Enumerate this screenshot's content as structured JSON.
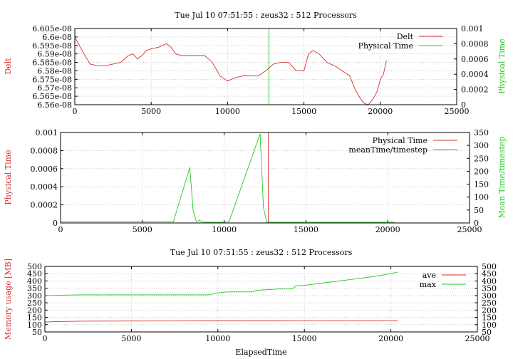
{
  "colors": {
    "red": "#d32f2f",
    "green": "#22c822",
    "grid": "#b0b0b0",
    "axis": "#000000"
  },
  "chart_data": [
    {
      "type": "line",
      "title": "Tue Jul 10 07:51:55 : zeus32 : 512 Processors",
      "xlim": [
        0,
        25000
      ],
      "x_ticks": [
        0,
        5000,
        10000,
        15000,
        20000,
        25000
      ],
      "ylabel": "Delt",
      "ylim": [
        6.56e-08,
        6.605e-08
      ],
      "y_ticks": [
        "6.56e-08",
        "6.565e-08",
        "6.57e-08",
        "6.575e-08",
        "6.58e-08",
        "6.585e-08",
        "6.59e-08",
        "6.595e-08",
        "6.6e-08",
        "6.605e-08"
      ],
      "y2label": "Physical Time",
      "y2lim": [
        0,
        0.001
      ],
      "y2_ticks": [
        "0",
        "0.0002",
        "0.0004",
        "0.0006",
        "0.0008",
        "0.001"
      ],
      "grid": true,
      "legend": "top-right",
      "series": [
        {
          "name": "Delt",
          "color": "red",
          "axis": "y",
          "x": [
            0,
            300,
            600,
            1000,
            1500,
            2000,
            2500,
            3000,
            3500,
            3800,
            4100,
            4400,
            4700,
            5000,
            5500,
            6000,
            6300,
            6600,
            7000,
            7500,
            8000,
            8500,
            9000,
            9500,
            10000,
            10500,
            11000,
            11500,
            12000,
            12500,
            13000,
            13500,
            14000,
            14500,
            15000,
            15300,
            15600,
            16000,
            16500,
            17000,
            17500,
            18000,
            18300,
            18600,
            18900,
            19200,
            19500,
            19800,
            20000,
            20200,
            20400
          ],
          "y": [
            6.6e-08,
            6.595e-08,
            6.59e-08,
            6.584e-08,
            6.583e-08,
            6.583e-08,
            6.584e-08,
            6.585e-08,
            6.589e-08,
            6.59e-08,
            6.587e-08,
            6.589e-08,
            6.592e-08,
            6.593e-08,
            6.594e-08,
            6.596e-08,
            6.594e-08,
            6.59e-08,
            6.589e-08,
            6.589e-08,
            6.589e-08,
            6.589e-08,
            6.585e-08,
            6.577e-08,
            6.574e-08,
            6.576e-08,
            6.577e-08,
            6.577e-08,
            6.577e-08,
            6.58e-08,
            6.584e-08,
            6.585e-08,
            6.585e-08,
            6.58e-08,
            6.58e-08,
            6.59e-08,
            6.592e-08,
            6.59e-08,
            6.585e-08,
            6.583e-08,
            6.58e-08,
            6.577e-08,
            6.57e-08,
            6.565e-08,
            6.561e-08,
            6.56e-08,
            6.563e-08,
            6.568e-08,
            6.575e-08,
            6.578e-08,
            6.586e-08
          ]
        },
        {
          "name": "Physical Time",
          "color": "green",
          "axis": "y2",
          "x": [
            12700,
            12700
          ],
          "y": [
            0,
            0.001
          ]
        }
      ]
    },
    {
      "type": "line",
      "title": "",
      "xlim": [
        0,
        25000
      ],
      "x_ticks": [
        0,
        5000,
        10000,
        15000,
        20000,
        25000
      ],
      "ylabel": "Physical Time",
      "ylim": [
        0,
        0.001
      ],
      "y_ticks": [
        "0",
        "0.0002",
        "0.0004",
        "0.0006",
        "0.0008",
        "0.001"
      ],
      "y2label": "Mean Time/timestep",
      "y2lim": [
        0,
        350
      ],
      "y2_ticks": [
        "0",
        "50",
        "100",
        "150",
        "200",
        "250",
        "300",
        "350"
      ],
      "grid": true,
      "legend": "top-right",
      "series": [
        {
          "name": "Physical Time",
          "color": "red",
          "axis": "y",
          "x": [
            12700,
            12700
          ],
          "y": [
            0,
            0.001
          ]
        },
        {
          "name": "meanTime/timestep",
          "color": "green",
          "axis": "y2",
          "x": [
            0,
            2000,
            4000,
            6900,
            7900,
            8100,
            8300,
            8500,
            8700,
            9000,
            10000,
            10300,
            12200,
            12400,
            12600,
            13000,
            15000,
            18000,
            20000,
            20400
          ],
          "y": [
            5,
            5,
            5,
            5,
            215,
            50,
            5,
            10,
            3,
            3,
            3,
            5,
            345,
            60,
            3,
            3,
            3,
            3,
            3,
            3
          ]
        }
      ]
    },
    {
      "type": "line",
      "title": "Tue Jul 10 07:51:55 : zeus32 : 512 Processors",
      "xlabel": "ElapsedTime",
      "xlim": [
        0,
        25000
      ],
      "x_ticks": [
        0,
        5000,
        10000,
        15000,
        20000,
        25000
      ],
      "ylabel": "Memory usage [MB]",
      "ylim": [
        50,
        500
      ],
      "y_ticks": [
        "50",
        "100",
        "150",
        "200",
        "250",
        "300",
        "350",
        "400",
        "450",
        "500"
      ],
      "y2lim": [
        50,
        500
      ],
      "y2_ticks": [
        "50",
        "100",
        "150",
        "200",
        "250",
        "300",
        "350",
        "400",
        "450",
        "500"
      ],
      "grid": true,
      "legend": "top-right",
      "series": [
        {
          "name": "ave",
          "color": "red",
          "axis": "y",
          "x": [
            0,
            1000,
            2000,
            5000,
            10000,
            15000,
            20000,
            20400
          ],
          "y": [
            118,
            122,
            124,
            125,
            126,
            127,
            128,
            128
          ]
        },
        {
          "name": "max",
          "color": "green",
          "axis": "y",
          "x": [
            0,
            2000,
            5000,
            9500,
            10000,
            10500,
            12000,
            12200,
            13500,
            14300,
            14500,
            15000,
            16000,
            17000,
            18000,
            19000,
            20000,
            20400
          ],
          "y": [
            300,
            305,
            305,
            305,
            318,
            325,
            325,
            335,
            345,
            345,
            365,
            370,
            385,
            400,
            415,
            430,
            450,
            462
          ]
        }
      ]
    }
  ]
}
